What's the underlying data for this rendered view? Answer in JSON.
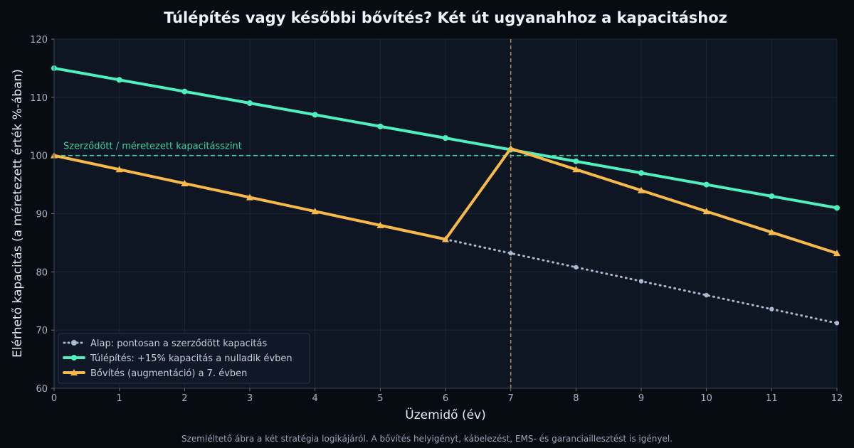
{
  "chart_data": {
    "type": "line",
    "title": "Túlépítés vagy későbbi bővítés? Két út ugyanahhoz a kapacitáshoz",
    "xlabel": "Üzemidő (év)",
    "ylabel": "Elérhető kapacitás (a méretezett érték %-ában)",
    "xlim": [
      0,
      12
    ],
    "ylim": [
      60,
      120
    ],
    "x_ticks": [
      0,
      1,
      2,
      3,
      4,
      5,
      6,
      7,
      8,
      9,
      10,
      11,
      12
    ],
    "y_ticks": [
      60,
      70,
      80,
      90,
      100,
      110,
      120
    ],
    "grid": true,
    "legend_position": "bottom-left",
    "reference_line": {
      "y": 100,
      "label": "Szerződött / méretezett kapacitásszint",
      "color": "#3ecfa0"
    },
    "vertical_marker": {
      "x": 7,
      "color": "#a88a4a"
    },
    "series": [
      {
        "name": "Alap: pontosan a szerződött kapacitás",
        "color": "#aab8d0",
        "style": "dotted",
        "marker": "circle",
        "x": [
          6,
          7,
          8,
          9,
          10,
          11,
          12
        ],
        "y": [
          85.6,
          83.2,
          80.8,
          78.4,
          76.0,
          73.6,
          71.2
        ]
      },
      {
        "name": "Túlépítés: +15% kapacitás a nulladik évben",
        "color": "#4ef0c0",
        "style": "solid",
        "marker": "circle",
        "x": [
          0,
          1,
          2,
          3,
          4,
          5,
          6,
          7,
          8,
          9,
          10,
          11,
          12
        ],
        "y": [
          115,
          113,
          111,
          109,
          107,
          105,
          103,
          101,
          99,
          97,
          95,
          93,
          91
        ]
      },
      {
        "name": "Bővítés (augmentáció) a 7. évben",
        "color": "#f6b94a",
        "style": "solid",
        "marker": "triangle",
        "x": [
          0,
          1,
          2,
          3,
          4,
          5,
          6,
          7,
          8,
          9,
          10,
          11,
          12
        ],
        "y": [
          100,
          97.6,
          95.2,
          92.8,
          90.4,
          88.0,
          85.6,
          101.2,
          97.6,
          94.0,
          90.4,
          86.8,
          83.2
        ]
      }
    ],
    "footnote": "Szemléltető ábra a két stratégia logikájáról. A bővítés helyigényt, kábelezést, EMS- és garanciaillesztést is igényel."
  }
}
